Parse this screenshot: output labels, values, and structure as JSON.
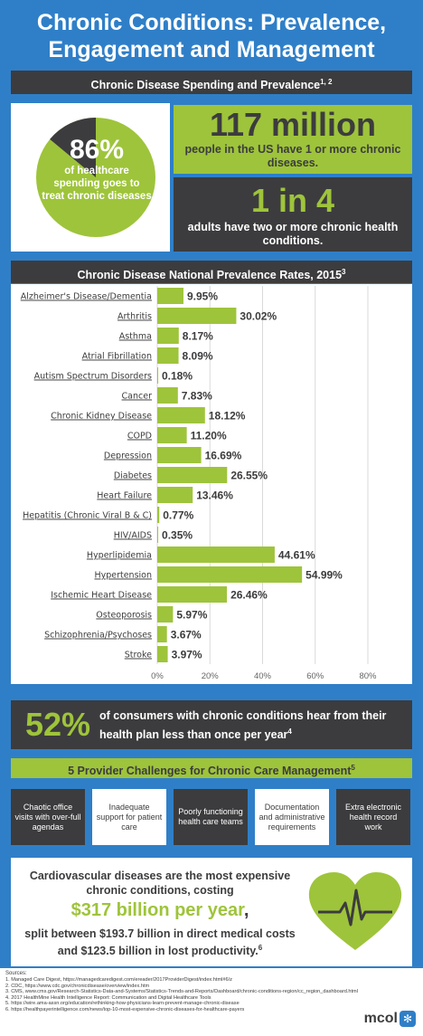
{
  "title_line1": "Chronic Conditions: Prevalence,",
  "title_line2": "Engagement and Management",
  "section1_header": "Chronic Disease Spending and Prevalence",
  "section1_sup": "1, 2",
  "spending": {
    "percent": "86%",
    "percent_value": 86,
    "caption": "of healthcare spending goes to treat chronic diseases"
  },
  "prevalence_count": {
    "number": "117 million",
    "caption": "people in the US have 1 or more chronic diseases."
  },
  "multiple_conditions": {
    "number": "1 in 4",
    "caption": "adults have two or more chronic health conditions."
  },
  "chart_header": "Chronic Disease National Prevalence Rates, 2015",
  "chart_sup": "3",
  "chart_data": {
    "type": "bar",
    "orientation": "horizontal",
    "title": "Chronic Disease National Prevalence Rates, 2015",
    "categories": [
      "Alzheimer's Disease/Dementia",
      "Arthritis",
      "Asthma",
      "Atrial Fibrillation",
      "Autism Spectrum Disorders",
      "Cancer",
      "Chronic Kidney Disease",
      "COPD",
      "Depression",
      "Diabetes",
      "Heart Failure",
      "Hepatitis (Chronic Viral B & C)",
      "HIV/AIDS",
      "Hyperlipidemia",
      "Hypertension",
      "Ischemic Heart Disease",
      "Osteoporosis",
      "Schizophrenia/Psychoses",
      "Stroke"
    ],
    "values": [
      9.95,
      30.02,
      8.17,
      8.09,
      0.18,
      7.83,
      18.12,
      11.2,
      16.69,
      26.55,
      13.46,
      0.77,
      0.35,
      44.61,
      54.99,
      26.46,
      5.97,
      3.67,
      3.97
    ],
    "value_labels": [
      "9.95%",
      "30.02%",
      "8.17%",
      "8.09%",
      "0.18%",
      "7.83%",
      "18.12%",
      "11.20%",
      "16.69%",
      "26.55%",
      "13.46%",
      "0.77%",
      "0.35%",
      "44.61%",
      "54.99%",
      "26.46%",
      "5.97%",
      "3.67%",
      "3.97%"
    ],
    "xlim": [
      0,
      80
    ],
    "x_ticks": [
      "0%",
      "20%",
      "40%",
      "60%",
      "80%"
    ],
    "grid": true,
    "bar_color": "#9ec43b"
  },
  "engagement": {
    "percent": "52%",
    "text": "of consumers with chronic conditions hear from their health plan  less than once per year",
    "sup": "4"
  },
  "challenges_header": "5 Provider Challenges for Chronic Care Management",
  "challenges_sup": "5",
  "challenges": [
    "Chaotic office visits with over-full agendas",
    "Inadequate support for patient care",
    "Poorly functioning health care teams",
    "Documentation and administrative requirements",
    "Extra electronic health record work"
  ],
  "cardio": {
    "line1": "Cardiovascular diseases are the most expensive chronic conditions, costing",
    "big": "$317 billion per year",
    "comma": ",",
    "line2": "split between $193.7 billion in direct medical costs and $123.5 billion in lost productivity.",
    "sup": "6"
  },
  "sources_title": "Sources:",
  "sources": [
    "1.  Managed Care Digest, https://managedcaredigest.com/ereader/2017ProviderDigest/index.html#6/z",
    "2.  CDC, https://www.cdc.gov/chronicdisease/overview/index.htm",
    "3.  CMS, www.cms.gov/Research-Statistics-Data-and-Systems/Statistics-Trends-and-Reports/Dashboard/chronic-conditions-region/cc_region_dashboard.html",
    "4.  2017 HealthMine Health Intelligence Report: Communication and Digital Healthcare Tools",
    "5.  https://wire.ama-assn.org/education/rethinking-how-physicians-learn-prevent-manage-chronic-disease",
    "6.  https://healthpayerintelligence.com/news/top-10-most-expensive-chronic-diseases-for-healthcare-payers"
  ],
  "logo_text": "mcol",
  "colors": {
    "blue": "#2f7fc8",
    "green": "#9ec43b",
    "dark": "#3c3c3e"
  }
}
